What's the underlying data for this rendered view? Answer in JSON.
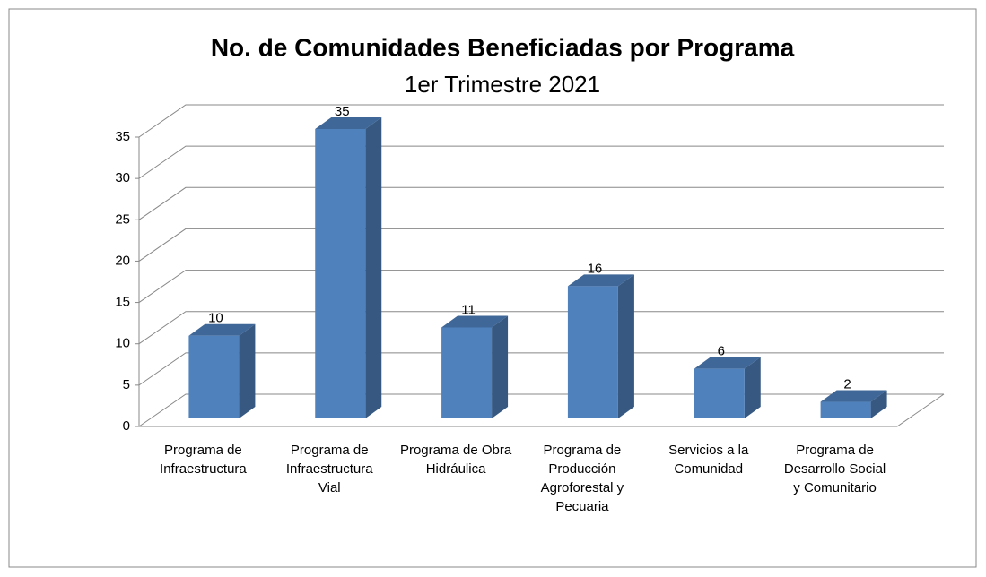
{
  "chart_data": {
    "type": "bar3d",
    "title": "No. de Comunidades Beneficiadas por Programa",
    "subtitle": "1er Trimestre 2021",
    "categories": [
      "Programa de Infraestructura",
      "Programa de Infraestructura Vial",
      "Programa de Obra Hidráulica",
      "Programa de Producción Agroforestal y Pecuaria",
      "Servicios a la Comunidad",
      "Programa de Desarrollo Social y Comunitario"
    ],
    "values": [
      10,
      35,
      11,
      16,
      6,
      2
    ],
    "color": "#4f81bd",
    "ylim": [
      0,
      35
    ],
    "yticks": [
      0,
      5,
      10,
      15,
      20,
      25,
      30,
      35
    ],
    "grid": true
  }
}
